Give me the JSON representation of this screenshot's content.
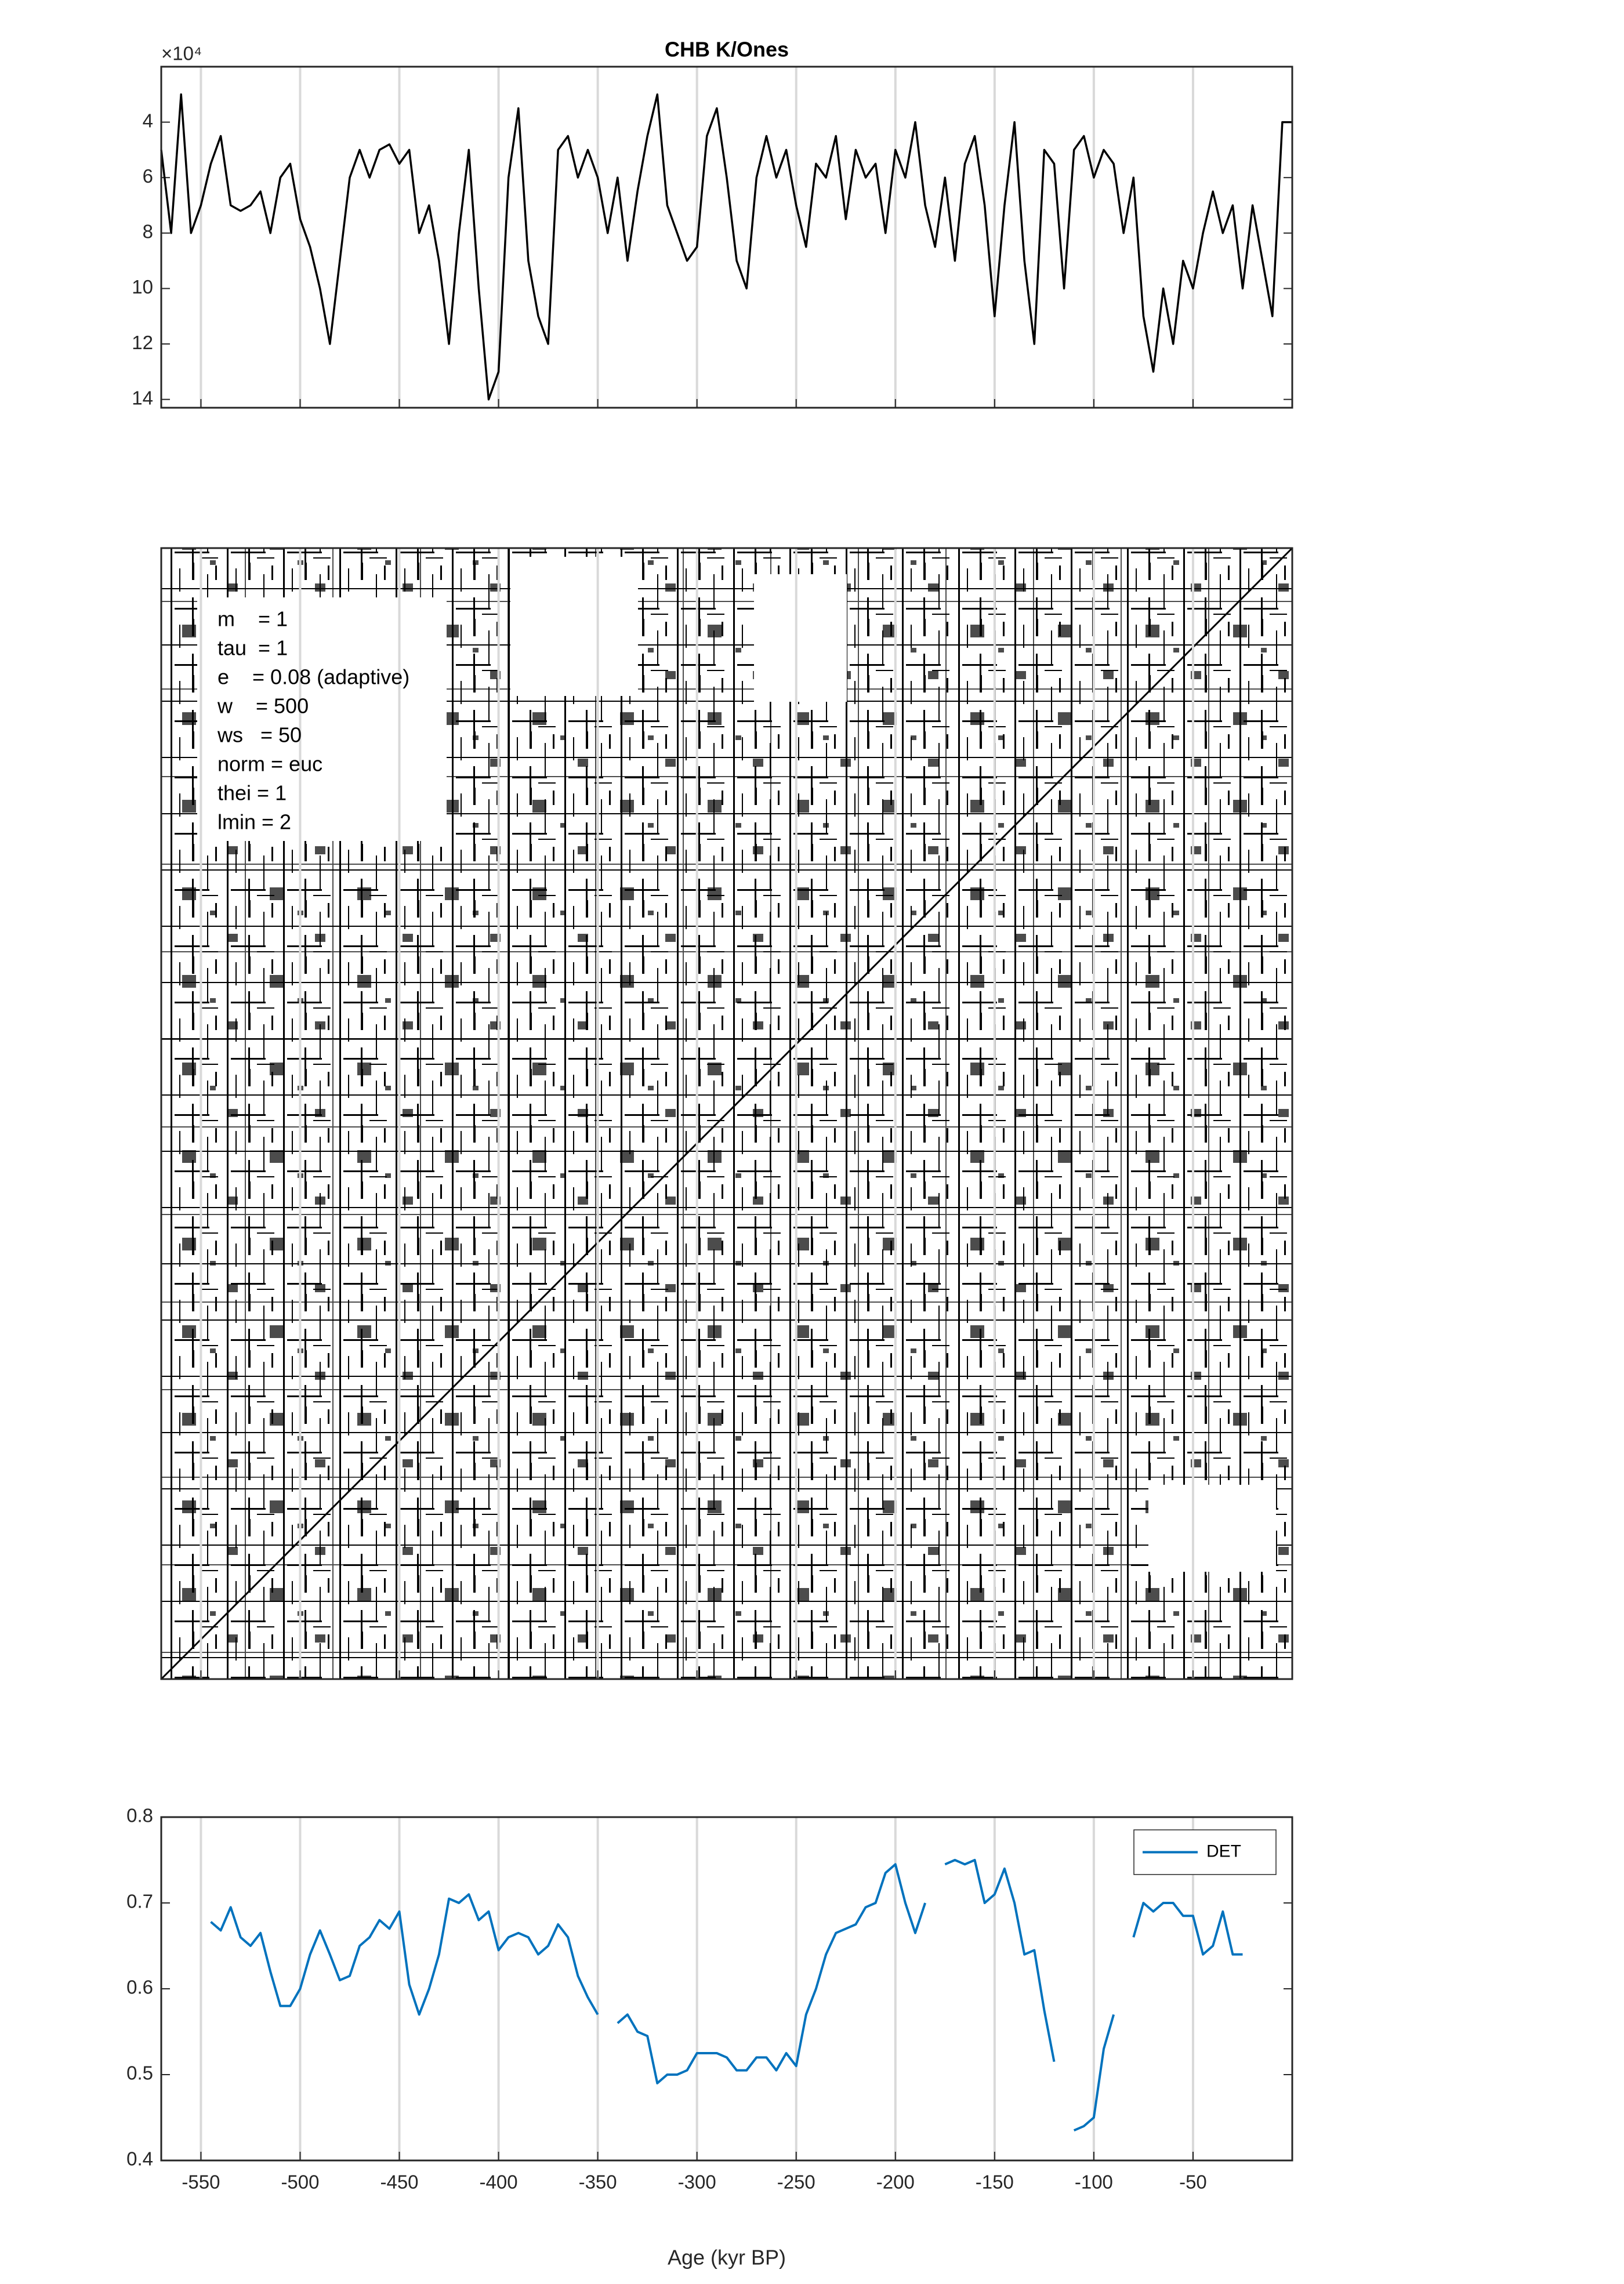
{
  "chart_data": [
    {
      "type": "line",
      "title": "CHB K/Ones",
      "y_multiplier": "×10⁴",
      "y_reversed": true,
      "grid": "x",
      "color": "#000000",
      "xlim": [
        -570,
        0
      ],
      "ylim": [
        20000,
        143000
      ],
      "yticks": [
        {
          "value": 40000,
          "label": "4"
        },
        {
          "value": 60000,
          "label": "6"
        },
        {
          "value": 80000,
          "label": "8"
        },
        {
          "value": 100000,
          "label": "10"
        },
        {
          "value": 120000,
          "label": "12"
        },
        {
          "value": 140000,
          "label": "14"
        }
      ],
      "x": [
        -570,
        -565,
        -560,
        -555,
        -550,
        -545,
        -540,
        -535,
        -530,
        -525,
        -520,
        -515,
        -510,
        -505,
        -500,
        -495,
        -490,
        -485,
        -480,
        -475,
        -470,
        -465,
        -460,
        -455,
        -450,
        -445,
        -440,
        -435,
        -430,
        -425,
        -420,
        -415,
        -410,
        -405,
        -400,
        -395,
        -390,
        -385,
        -380,
        -375,
        -370,
        -365,
        -360,
        -355,
        -350,
        -345,
        -340,
        -335,
        -330,
        -325,
        -320,
        -315,
        -310,
        -305,
        -300,
        -295,
        -290,
        -285,
        -280,
        -275,
        -270,
        -265,
        -260,
        -255,
        -250,
        -245,
        -240,
        -235,
        -230,
        -225,
        -220,
        -215,
        -210,
        -205,
        -200,
        -195,
        -190,
        -185,
        -180,
        -175,
        -170,
        -165,
        -160,
        -155,
        -150,
        -145,
        -140,
        -135,
        -130,
        -125,
        -120,
        -115,
        -110,
        -105,
        -100,
        -95,
        -90,
        -85,
        -80,
        -75,
        -70,
        -65,
        -60,
        -55,
        -50,
        -45,
        -40,
        -35,
        -30,
        -25,
        -20,
        -15,
        -10,
        -5,
        0
      ],
      "values": [
        50000,
        80000,
        30000,
        80000,
        70000,
        55000,
        45000,
        70000,
        72000,
        70000,
        65000,
        80000,
        60000,
        55000,
        75000,
        85000,
        100000,
        120000,
        90000,
        60000,
        50000,
        60000,
        50000,
        48000,
        55000,
        50000,
        80000,
        70000,
        90000,
        120000,
        80000,
        50000,
        100000,
        140000,
        130000,
        60000,
        35000,
        90000,
        110000,
        120000,
        50000,
        45000,
        60000,
        50000,
        60000,
        80000,
        60000,
        90000,
        65000,
        45000,
        30000,
        70000,
        80000,
        90000,
        85000,
        45000,
        35000,
        60000,
        90000,
        100000,
        60000,
        45000,
        60000,
        50000,
        70000,
        85000,
        55000,
        60000,
        45000,
        75000,
        50000,
        60000,
        55000,
        80000,
        50000,
        60000,
        40000,
        70000,
        85000,
        60000,
        90000,
        55000,
        45000,
        70000,
        110000,
        70000,
        40000,
        90000,
        120000,
        50000,
        55000,
        100000,
        50000,
        45000,
        60000,
        50000,
        55000,
        80000,
        60000,
        110000,
        130000,
        100000,
        120000,
        90000,
        100000,
        80000,
        65000,
        80000,
        70000,
        100000,
        70000,
        90000,
        110000,
        40000,
        40000
      ]
    },
    {
      "type": "recurrence",
      "grid": "x",
      "annotations": [
        "m    = 1",
        "tau  = 1",
        "e    = 0.08 (adaptive)",
        "w    = 500",
        "ws   = 50",
        "norm = euc",
        "thei = 1",
        "lmin = 2"
      ]
    },
    {
      "type": "line",
      "grid": "x",
      "legend": "upper right",
      "xlabel": "Age (kyr BP)",
      "xlim": [
        -570,
        0
      ],
      "ylim": [
        0.4,
        0.8
      ],
      "xticks": [
        -550,
        -500,
        -450,
        -400,
        -350,
        -300,
        -250,
        -200,
        -150,
        -100,
        -50
      ],
      "yticks": [
        0.4,
        0.5,
        0.6,
        0.7,
        0.8
      ],
      "x": [
        -545,
        -540,
        -535,
        -530,
        -525,
        -520,
        -515,
        -510,
        -505,
        -500,
        -495,
        -490,
        -485,
        -480,
        -475,
        -470,
        -465,
        -460,
        -455,
        -450,
        -445,
        -440,
        -435,
        -430,
        -425,
        -420,
        -415,
        -410,
        -405,
        -400,
        -395,
        -390,
        -385,
        -380,
        -375,
        -370,
        -365,
        -360,
        -355,
        -350,
        -345,
        -340,
        -335,
        -330,
        -325,
        -320,
        -315,
        -310,
        -305,
        -300,
        -295,
        -290,
        -285,
        -280,
        -275,
        -270,
        -265,
        -260,
        -255,
        -250,
        -245,
        -240,
        -235,
        -230,
        -225,
        -220,
        -215,
        -210,
        -205,
        -200,
        -195,
        -190,
        -185,
        -180,
        -175,
        -170,
        -165,
        -160,
        -155,
        -150,
        -145,
        -140,
        -135,
        -130,
        -125,
        -120,
        -115,
        -110,
        -105,
        -100,
        -95,
        -90,
        -85,
        -80,
        -75,
        -70,
        -65,
        -60,
        -55,
        -50,
        -45,
        -40,
        -35,
        -30,
        -25
      ],
      "series": [
        {
          "name": "DET",
          "color": "#0072bd",
          "values": [
            0.678,
            0.668,
            0.695,
            0.66,
            0.65,
            0.665,
            0.62,
            0.58,
            0.58,
            0.6,
            0.64,
            0.668,
            0.64,
            0.61,
            0.615,
            0.65,
            0.66,
            0.68,
            0.67,
            0.69,
            0.605,
            0.57,
            0.6,
            0.64,
            0.705,
            0.7,
            0.71,
            0.68,
            0.69,
            0.645,
            0.66,
            0.665,
            0.66,
            0.64,
            0.65,
            0.675,
            0.66,
            0.615,
            0.59,
            0.57,
            null,
            0.56,
            0.57,
            0.55,
            0.545,
            0.49,
            0.5,
            0.5,
            0.505,
            0.525,
            0.525,
            0.525,
            0.52,
            0.505,
            0.505,
            0.52,
            0.52,
            0.505,
            0.525,
            0.51,
            0.57,
            0.6,
            0.64,
            0.665,
            0.67,
            0.675,
            0.695,
            0.7,
            0.735,
            0.745,
            0.7,
            0.665,
            0.7,
            null,
            0.745,
            0.75,
            0.745,
            0.75,
            0.7,
            0.71,
            0.74,
            0.7,
            0.64,
            0.645,
            0.575,
            0.515,
            null,
            0.435,
            0.44,
            0.45,
            0.53,
            0.57,
            null,
            0.66,
            0.7,
            0.69,
            0.7,
            0.7,
            0.685,
            0.685,
            0.64,
            0.65,
            0.69,
            0.64,
            0.64
          ]
        }
      ]
    }
  ]
}
